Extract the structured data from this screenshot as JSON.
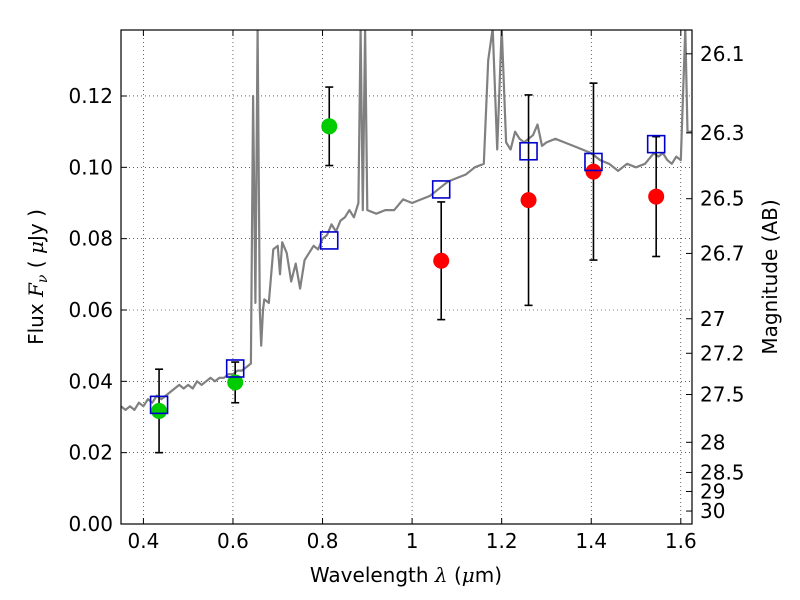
{
  "chart_data": {
    "type": "scatter",
    "xlabel": {
      "prefix": "Wavelength  ",
      "symbol": "λ",
      "space": " (",
      "mu": "μ",
      "unit": "m)"
    },
    "ylabel": {
      "prefix": "Flux  ",
      "symbol": "F",
      "subscript": "ν",
      "space": "  ( ",
      "mu": "μ",
      "unit": "Jy )"
    },
    "y2label": "Magnitude (AB)",
    "xlim": [
      0.35,
      1.625
    ],
    "ylim": [
      0.0,
      0.1385
    ],
    "xticks": [
      0.4,
      0.6,
      0.8,
      1.0,
      1.2,
      1.4,
      1.6
    ],
    "xtick_labels": [
      "0.4",
      "0.6",
      "0.8",
      "1",
      "1.2",
      "1.4",
      "1.6"
    ],
    "yticks": [
      0.0,
      0.02,
      0.04,
      0.06,
      0.08,
      0.1,
      0.12
    ],
    "ytick_labels": [
      "0.00",
      "0.02",
      "0.04",
      "0.06",
      "0.08",
      "0.10",
      "0.12"
    ],
    "mag_ticks": [
      26.1,
      26.3,
      26.5,
      26.7,
      27.0,
      27.2,
      27.5,
      28.0,
      28.5,
      29.0,
      30.0
    ],
    "mag_tick_labels": [
      "26.1",
      "26.3",
      "26.5",
      "26.7",
      "27",
      "27.2",
      "27.5",
      "28",
      "28.5",
      "29",
      "30"
    ],
    "grid": true,
    "series": [
      {
        "type": "line",
        "color": "#808080",
        "x": [
          0.35,
          0.36,
          0.37,
          0.38,
          0.39,
          0.4,
          0.41,
          0.42,
          0.43,
          0.44,
          0.45,
          0.46,
          0.47,
          0.48,
          0.49,
          0.5,
          0.51,
          0.52,
          0.53,
          0.54,
          0.55,
          0.56,
          0.57,
          0.58,
          0.59,
          0.6,
          0.61,
          0.62,
          0.63,
          0.64,
          0.645,
          0.65,
          0.655,
          0.66,
          0.663,
          0.667,
          0.67,
          0.68,
          0.69,
          0.7,
          0.705,
          0.71,
          0.72,
          0.73,
          0.74,
          0.75,
          0.76,
          0.77,
          0.78,
          0.79,
          0.8,
          0.81,
          0.82,
          0.83,
          0.84,
          0.85,
          0.86,
          0.87,
          0.88,
          0.885,
          0.89,
          0.895,
          0.9,
          0.92,
          0.94,
          0.96,
          0.98,
          1.0,
          1.02,
          1.04,
          1.06,
          1.08,
          1.1,
          1.12,
          1.14,
          1.16,
          1.17,
          1.18,
          1.19,
          1.2,
          1.21,
          1.22,
          1.23,
          1.24,
          1.25,
          1.26,
          1.27,
          1.28,
          1.29,
          1.3,
          1.32,
          1.34,
          1.36,
          1.38,
          1.4,
          1.42,
          1.44,
          1.46,
          1.48,
          1.5,
          1.52,
          1.54,
          1.55,
          1.56,
          1.57,
          1.58,
          1.59,
          1.6,
          1.61,
          1.615,
          1.625
        ],
        "y": [
          0.033,
          0.032,
          0.033,
          0.032,
          0.034,
          0.033,
          0.035,
          0.034,
          0.036,
          0.035,
          0.036,
          0.037,
          0.038,
          0.039,
          0.038,
          0.039,
          0.038,
          0.04,
          0.039,
          0.04,
          0.041,
          0.04,
          0.041,
          0.041,
          0.042,
          0.042,
          0.043,
          0.043,
          0.044,
          0.045,
          0.12,
          0.062,
          0.139,
          0.06,
          0.05,
          0.06,
          0.063,
          0.062,
          0.077,
          0.078,
          0.07,
          0.079,
          0.076,
          0.068,
          0.073,
          0.066,
          0.074,
          0.076,
          0.078,
          0.077,
          0.08,
          0.081,
          0.084,
          0.082,
          0.085,
          0.086,
          0.088,
          0.086,
          0.09,
          0.139,
          0.088,
          0.139,
          0.088,
          0.087,
          0.088,
          0.088,
          0.091,
          0.09,
          0.091,
          0.092,
          0.094,
          0.096,
          0.097,
          0.098,
          0.1,
          0.101,
          0.13,
          0.139,
          0.105,
          0.139,
          0.107,
          0.105,
          0.11,
          0.108,
          0.107,
          0.108,
          0.109,
          0.112,
          0.106,
          0.107,
          0.108,
          0.107,
          0.106,
          0.105,
          0.104,
          0.102,
          0.101,
          0.099,
          0.101,
          0.1,
          0.101,
          0.104,
          0.103,
          0.104,
          0.102,
          0.101,
          0.103,
          0.102,
          0.139,
          0.11,
          0.11
        ]
      },
      {
        "type": "points",
        "color": "#00cc00",
        "x": [
          0.435,
          0.605,
          0.815
        ],
        "y": [
          0.0317,
          0.0397,
          0.1115
        ],
        "err": [
          0.0117,
          0.0057,
          0.011
        ]
      },
      {
        "type": "points",
        "color": "#ff0000",
        "x": [
          1.065,
          1.26,
          1.405,
          1.545
        ],
        "y": [
          0.0738,
          0.0908,
          0.0988,
          0.0918
        ],
        "err": [
          0.0165,
          0.0295,
          0.0248,
          0.0168
        ]
      },
      {
        "type": "squares",
        "color": "#0000cc",
        "x": [
          0.435,
          0.605,
          0.815,
          1.065,
          1.26,
          1.405,
          1.545
        ],
        "y": [
          0.0334,
          0.0436,
          0.0795,
          0.0938,
          0.1045,
          0.1015,
          0.1065
        ]
      }
    ]
  }
}
